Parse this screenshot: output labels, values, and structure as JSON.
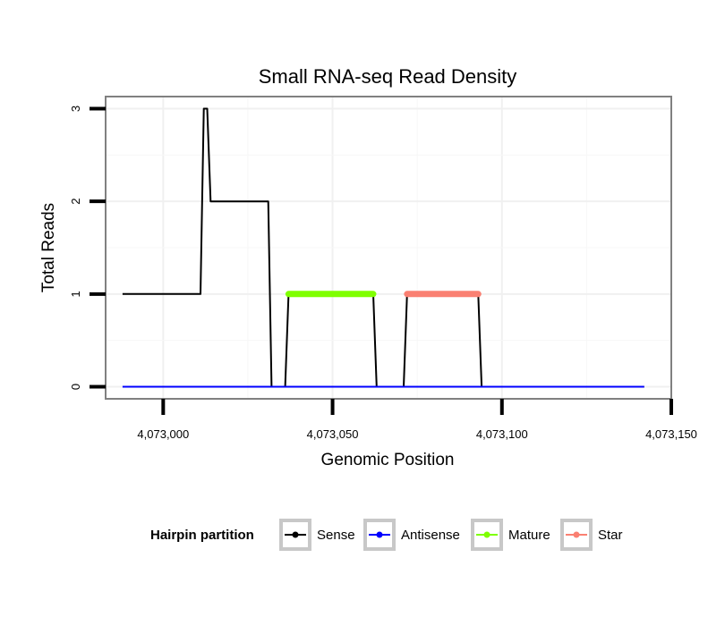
{
  "chart_data": {
    "type": "line",
    "title": "Small RNA-seq Read Density",
    "xlabel": "Genomic Position",
    "ylabel": "Total Reads",
    "xlim": [
      4072983,
      4073150
    ],
    "ylim": [
      -0.13,
      3.13
    ],
    "x_ticks": [
      4073000,
      4073050,
      4073100,
      4073150
    ],
    "x_tick_labels": [
      "4,073,000",
      "4,073,050",
      "4,073,100",
      "4,073,150"
    ],
    "y_ticks": [
      0,
      1,
      2,
      3
    ],
    "y_tick_labels": [
      "0",
      "1",
      "2",
      "3"
    ],
    "grid": true,
    "legend": {
      "title": "Hairpin partition",
      "position": "bottom",
      "entries": [
        {
          "name": "Sense",
          "color": "#000000"
        },
        {
          "name": "Antisense",
          "color": "#0000ff"
        },
        {
          "name": "Mature",
          "color": "#7fff00"
        },
        {
          "name": "Star",
          "color": "#fa8072"
        }
      ]
    },
    "series": [
      {
        "name": "Sense",
        "color": "#000000",
        "stroke": "thin",
        "points": [
          [
            4072988,
            1
          ],
          [
            4073011,
            1
          ],
          [
            4073012,
            3
          ],
          [
            4073013,
            3
          ],
          [
            4073014,
            2
          ],
          [
            4073031,
            2
          ],
          [
            4073032,
            0
          ],
          [
            4073036,
            0
          ],
          [
            4073037,
            1
          ],
          [
            4073062,
            1
          ],
          [
            4073063,
            0
          ],
          [
            4073071,
            0
          ],
          [
            4073072,
            1
          ],
          [
            4073093,
            1
          ],
          [
            4073094,
            0
          ],
          [
            4073142,
            0
          ]
        ]
      },
      {
        "name": "Antisense",
        "color": "#0000ff",
        "stroke": "thin",
        "points": [
          [
            4072988,
            0
          ],
          [
            4073142,
            0
          ]
        ]
      },
      {
        "name": "Mature",
        "color": "#7fff00",
        "stroke": "thick",
        "points": [
          [
            4073037,
            1
          ],
          [
            4073062,
            1
          ]
        ]
      },
      {
        "name": "Star",
        "color": "#fa8072",
        "stroke": "thick",
        "points": [
          [
            4073072,
            1
          ],
          [
            4073093,
            1
          ]
        ]
      }
    ]
  }
}
